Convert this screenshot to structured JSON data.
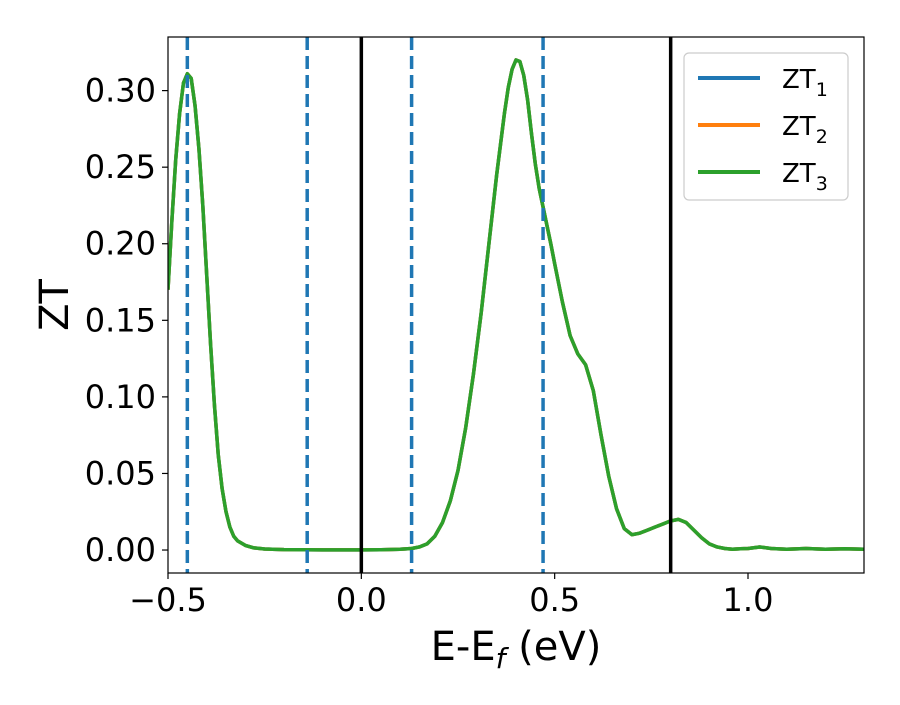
{
  "chart_data": {
    "type": "line",
    "xlabel": "E-E",
    "xlabel_subscript": "f",
    "xlabel_unit": " (eV)",
    "ylabel": "ZT",
    "xlim": [
      -0.5,
      1.3
    ],
    "ylim": [
      -0.015,
      0.335
    ],
    "x_ticks": [
      -0.5,
      0.0,
      0.5,
      1.0
    ],
    "x_tick_labels": [
      "−0.5",
      "0.0",
      "0.5",
      "1.0"
    ],
    "y_ticks": [
      0.0,
      0.05,
      0.1,
      0.15,
      0.2,
      0.25,
      0.3
    ],
    "y_tick_labels": [
      "0.00",
      "0.05",
      "0.10",
      "0.15",
      "0.20",
      "0.25",
      "0.30"
    ],
    "grid": false,
    "legend_position": "top-right",
    "series": [
      {
        "name": "ZT",
        "subscript": "1",
        "color": "#1f77b4"
      },
      {
        "name": "ZT",
        "subscript": "2",
        "color": "#ff7f0e"
      },
      {
        "name": "ZT",
        "subscript": "3",
        "color": "#2ca02c"
      }
    ],
    "curve": {
      "x": [
        -0.5,
        -0.49,
        -0.48,
        -0.47,
        -0.46,
        -0.45,
        -0.44,
        -0.43,
        -0.42,
        -0.41,
        -0.4,
        -0.39,
        -0.38,
        -0.37,
        -0.36,
        -0.35,
        -0.34,
        -0.33,
        -0.32,
        -0.3,
        -0.28,
        -0.25,
        -0.2,
        -0.15,
        -0.1,
        -0.05,
        0.0,
        0.05,
        0.1,
        0.13,
        0.15,
        0.17,
        0.19,
        0.21,
        0.23,
        0.25,
        0.27,
        0.29,
        0.31,
        0.33,
        0.35,
        0.37,
        0.38,
        0.39,
        0.4,
        0.41,
        0.42,
        0.43,
        0.44,
        0.45,
        0.46,
        0.47,
        0.48,
        0.49,
        0.5,
        0.52,
        0.54,
        0.56,
        0.58,
        0.6,
        0.62,
        0.64,
        0.66,
        0.68,
        0.7,
        0.72,
        0.74,
        0.76,
        0.78,
        0.8,
        0.82,
        0.84,
        0.86,
        0.88,
        0.9,
        0.92,
        0.94,
        0.96,
        0.98,
        1.0,
        1.03,
        1.06,
        1.1,
        1.15,
        1.2,
        1.25,
        1.3
      ],
      "y": [
        0.17,
        0.215,
        0.255,
        0.285,
        0.305,
        0.311,
        0.308,
        0.29,
        0.262,
        0.225,
        0.18,
        0.135,
        0.095,
        0.062,
        0.04,
        0.025,
        0.015,
        0.009,
        0.006,
        0.003,
        0.0015,
        0.0007,
        0.0003,
        0.0002,
        0.0001,
        0.0001,
        0.0001,
        0.0002,
        0.0005,
        0.001,
        0.002,
        0.004,
        0.009,
        0.018,
        0.032,
        0.052,
        0.08,
        0.115,
        0.155,
        0.2,
        0.245,
        0.285,
        0.302,
        0.314,
        0.32,
        0.319,
        0.31,
        0.294,
        0.272,
        0.252,
        0.236,
        0.224,
        0.212,
        0.2,
        0.187,
        0.162,
        0.14,
        0.128,
        0.121,
        0.104,
        0.075,
        0.048,
        0.027,
        0.014,
        0.01,
        0.011,
        0.013,
        0.015,
        0.017,
        0.019,
        0.02,
        0.018,
        0.013,
        0.008,
        0.004,
        0.002,
        0.001,
        0.0005,
        0.0008,
        0.001,
        0.002,
        0.001,
        0.0005,
        0.001,
        0.0005,
        0.0008,
        0.0005
      ]
    },
    "vlines_solid": [
      0.0,
      0.8
    ],
    "vlines_dashed": [
      -0.45,
      -0.14,
      0.13,
      0.47
    ],
    "solid_line_color": "#000000",
    "dashed_line_color": "#1f77b4"
  }
}
